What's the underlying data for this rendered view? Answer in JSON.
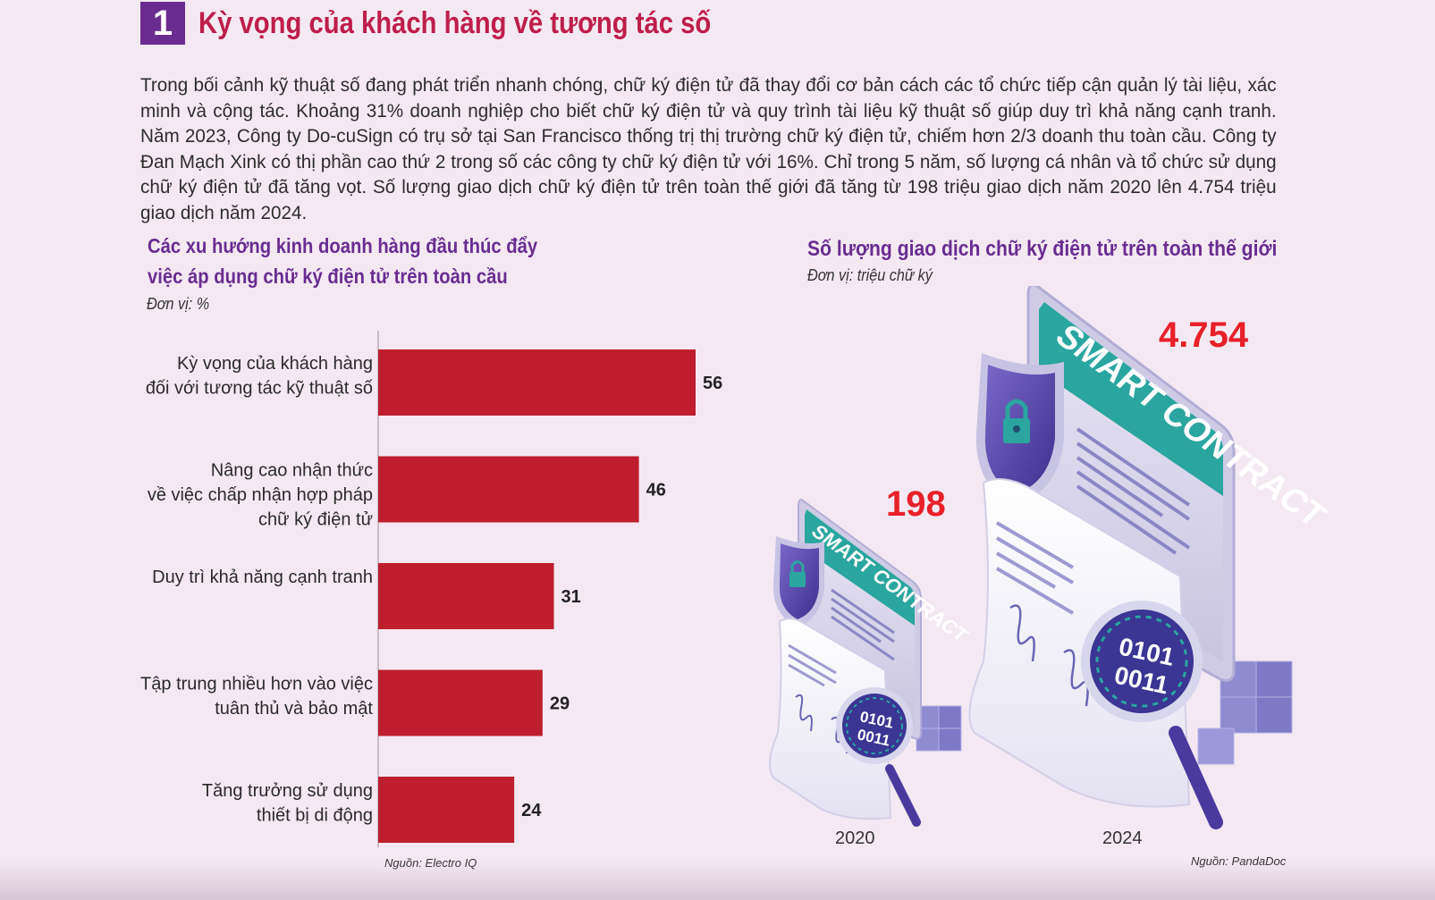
{
  "section": {
    "number": "1",
    "title": "Kỳ vọng của khách hàng về tương tác số"
  },
  "intro": "Trong bối cảnh kỹ thuật số đang phát triển nhanh chóng, chữ ký điện tử đã thay đổi cơ bản cách các tổ chức tiếp cận quản lý tài liệu, xác minh và cộng tác. Khoảng 31% doanh nghiệp cho biết chữ ký điện tử và quy trình tài liệu kỹ thuật số giúp duy trì khả năng cạnh tranh. Năm 2023, Công ty Do-cuSign có trụ sở tại San Francisco thống trị thị trường chữ ký điện tử, chiếm hơn 2/3 doanh thu toàn cầu. Công ty Đan Mạch Xink có thị phần cao thứ 2 trong số các công ty chữ ký điện tử với 16%. Chỉ trong 5 năm, số lượng cá nhân và tổ chức sử dụng chữ ký điện tử đã tăng vọt. Số lượng giao dịch chữ ký điện tử trên toàn thế giới đã tăng từ 198 triệu giao dịch năm 2020 lên 4.754 triệu giao dịch năm 2024.",
  "chart_data": [
    {
      "type": "bar",
      "orientation": "horizontal",
      "title": "Các xu hướng kinh doanh hàng đầu thúc đẩy việc áp dụng chữ ký điện tử trên toàn cầu",
      "title_lines": [
        "Các xu hướng kinh doanh hàng đầu thúc đẩy",
        "việc áp dụng chữ ký điện tử trên toàn cầu"
      ],
      "unit": "Đơn vị: %",
      "categories": [
        [
          "Kỳ vọng của khách hàng",
          "đối với tương tác kỹ thuật số"
        ],
        [
          "Nâng cao nhận thức",
          "về việc chấp nhận hợp pháp",
          "chữ ký điện tử"
        ],
        [
          "Duy trì khả năng cạnh tranh"
        ],
        [
          "Tập trung nhiều hơn vào việc",
          "tuân thủ và bảo mật"
        ],
        [
          "Tăng trưởng sử dụng",
          "thiết bị di động"
        ]
      ],
      "values": [
        56,
        46,
        31,
        29,
        24
      ],
      "value_labels": [
        "56",
        "46",
        "31",
        "29",
        "24"
      ],
      "xlim": [
        0,
        60
      ],
      "bar_color": "#be1e2d",
      "source": "Nguồn: Electro IQ"
    },
    {
      "type": "bar",
      "style": "pictorial",
      "title": "Số lượng giao dịch chữ ký điện tử trên toàn thế giới",
      "unit": "Đơn vị: triệu chữ ký",
      "categories": [
        "2020",
        "2024"
      ],
      "values": [
        198,
        4754
      ],
      "value_labels": [
        "198",
        "4.754"
      ],
      "value_color": "#e8202a",
      "source": "Nguồn: PandaDoc",
      "illustration_text": "SMART CONTRACT",
      "illustration_binary": [
        "0101",
        "0011"
      ]
    }
  ],
  "colors": {
    "background": "#f4e9f2",
    "accent_purple": "#6a2c91",
    "title_red": "#be1e4b",
    "teal": "#2aa5a0"
  },
  "icons": [
    "smart-contract-document-icon",
    "shield-lock-icon",
    "magnifier-icon",
    "signature-icon",
    "cube-stack-icon"
  ]
}
